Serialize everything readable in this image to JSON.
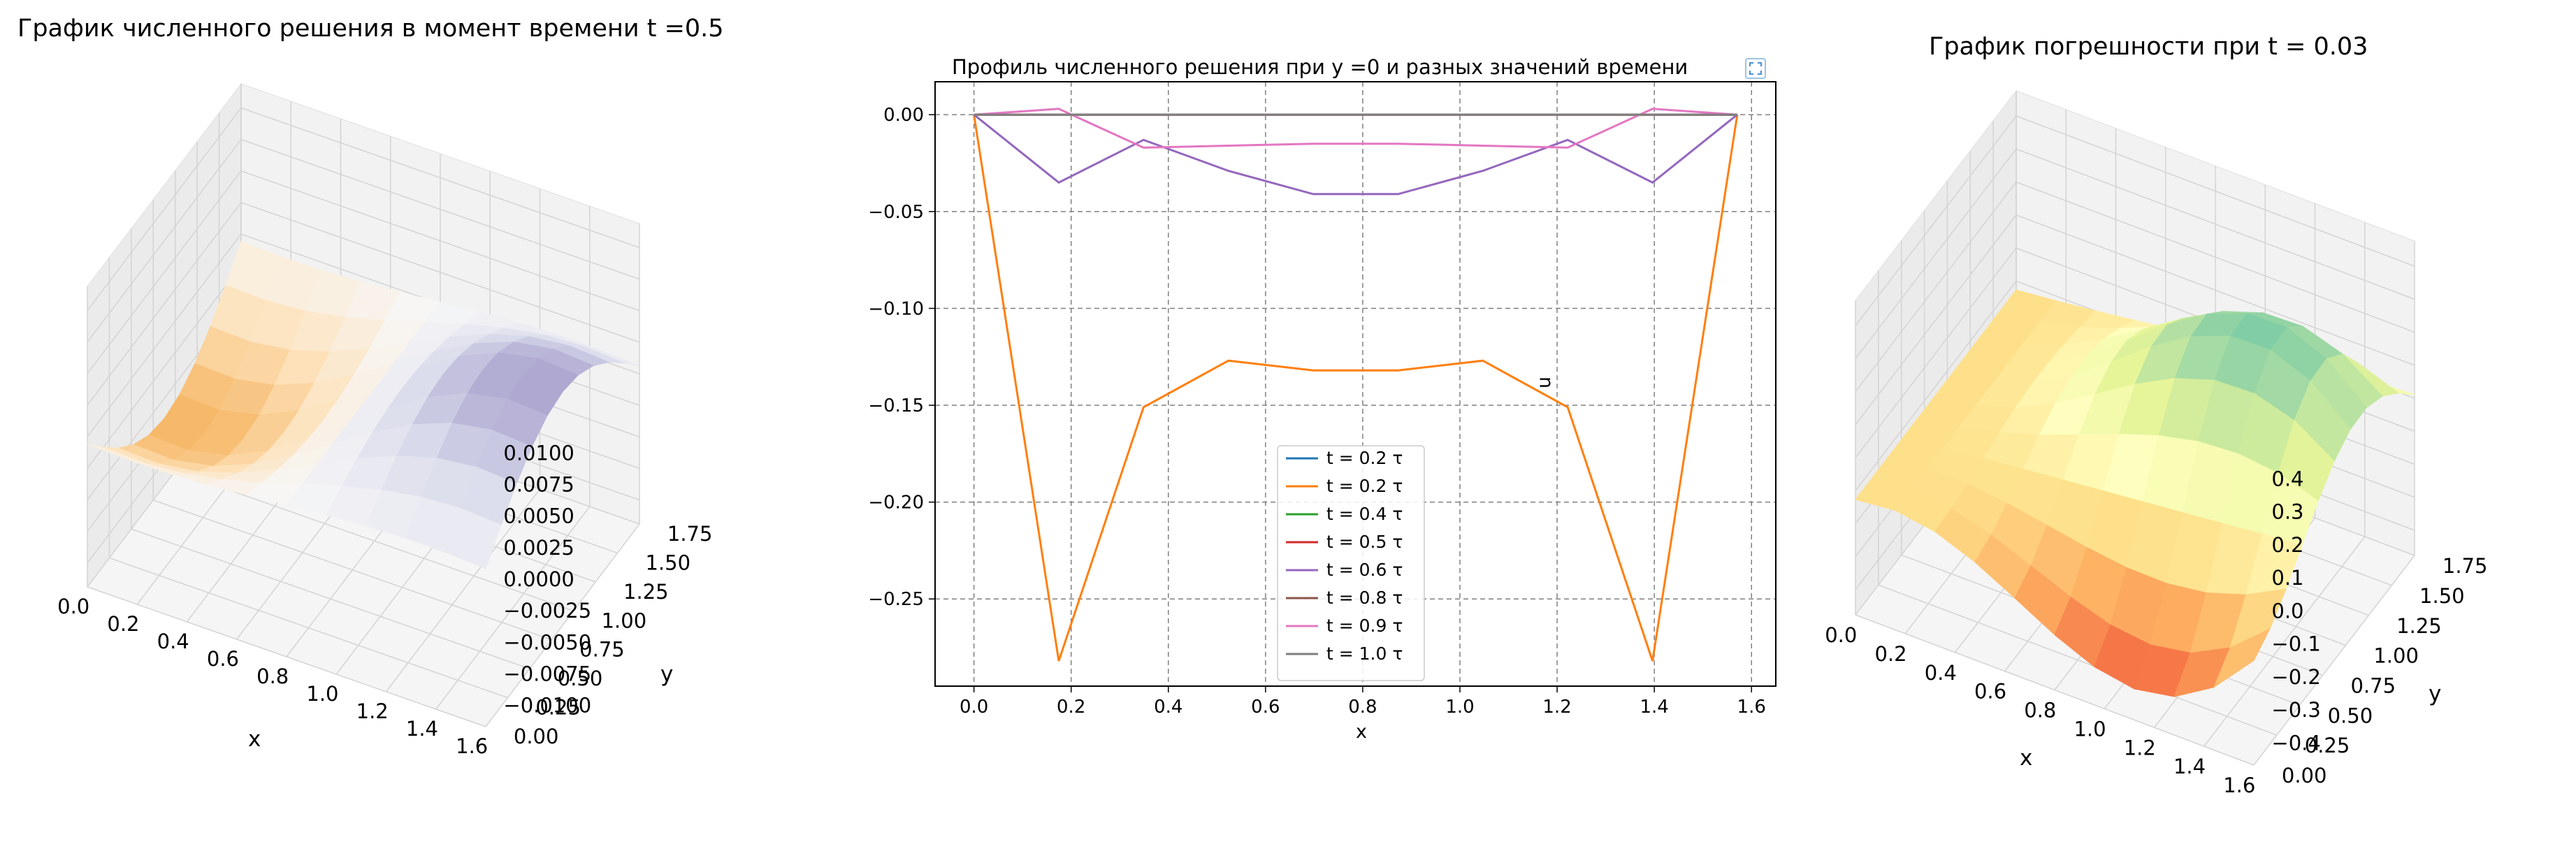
{
  "chart_data": [
    {
      "type": "surface3d",
      "title": "График численного решения в момент времени t =0.5",
      "xlabel": "x",
      "ylabel": "y",
      "xticks": [
        "0.0",
        "0.2",
        "0.4",
        "0.6",
        "0.8",
        "1.0",
        "1.2",
        "1.4",
        "1.6"
      ],
      "yticks": [
        "0.00",
        "0.25",
        "0.50",
        "0.75",
        "1.00",
        "1.25",
        "1.50",
        "1.75"
      ],
      "zticks": [
        "0.0100",
        "0.0075",
        "0.0050",
        "0.0025",
        "0.0000",
        "−0.0025",
        "−0.0050",
        "−0.0075",
        "−0.0100"
      ],
      "zlim": [
        -0.01,
        0.01
      ],
      "colormap": "PuOr",
      "colormap_stops": [
        "#b35806",
        "#f1a340",
        "#fee0b6",
        "#f7f7f7",
        "#d8daeb",
        "#998ec3",
        "#542788"
      ]
    },
    {
      "type": "line",
      "title": "Профиль численного решения при y =0 и разных значений времени",
      "xlabel": "x",
      "ylabel": "u",
      "xlim": [
        -0.08,
        1.65
      ],
      "ylim": [
        -0.295,
        0.017
      ],
      "xticks": [
        "0.0",
        "0.2",
        "0.4",
        "0.6",
        "0.8",
        "1.0",
        "1.2",
        "1.4",
        "1.6"
      ],
      "yticks": [
        "0.00",
        "−0.05",
        "−0.10",
        "−0.15",
        "−0.20",
        "−0.25"
      ],
      "grid": true,
      "legend_position": "lower center",
      "x": [
        0.0,
        0.1745,
        0.349,
        0.5236,
        0.6981,
        0.8727,
        1.0472,
        1.2217,
        1.3963,
        1.5708
      ],
      "series": [
        {
          "name": "t = 0.2 τ",
          "color": "#1f77b4",
          "values": [
            0,
            0,
            0,
            0,
            0,
            0,
            0,
            0,
            0,
            0
          ]
        },
        {
          "name": "t = 0.2 τ",
          "color": "#ff7f0e",
          "values": [
            0,
            -0.282,
            -0.151,
            -0.127,
            -0.132,
            -0.132,
            -0.127,
            -0.151,
            -0.282,
            0
          ]
        },
        {
          "name": "t = 0.4 τ",
          "color": "#2ca02c",
          "values": [
            0,
            0,
            0,
            0,
            0,
            0,
            0,
            0,
            0,
            0
          ]
        },
        {
          "name": "t = 0.5 τ",
          "color": "#d62728",
          "values": [
            0,
            0,
            0,
            0,
            0,
            0,
            0,
            0,
            0,
            0
          ]
        },
        {
          "name": "t = 0.6 τ",
          "color": "#9467bd",
          "values": [
            0,
            -0.035,
            -0.013,
            -0.029,
            -0.041,
            -0.041,
            -0.029,
            -0.013,
            -0.035,
            0
          ]
        },
        {
          "name": "t = 0.8 τ",
          "color": "#8c564b",
          "values": [
            0,
            0,
            0,
            0,
            0,
            0,
            0,
            0,
            0,
            0
          ]
        },
        {
          "name": "t = 0.9 τ",
          "color": "#e377c2",
          "values": [
            0,
            0.003,
            -0.017,
            -0.016,
            -0.015,
            -0.015,
            -0.016,
            -0.017,
            0.003,
            0
          ]
        },
        {
          "name": "t = 1.0 τ",
          "color": "#7f7f7f",
          "values": [
            0,
            0,
            0,
            0,
            0,
            0,
            0,
            0,
            0,
            0
          ]
        }
      ]
    },
    {
      "type": "surface3d",
      "title": "График погрешности при t = 0.03",
      "xlabel": "x",
      "ylabel": "y",
      "xticks": [
        "0.0",
        "0.2",
        "0.4",
        "0.6",
        "0.8",
        "1.0",
        "1.2",
        "1.4",
        "1.6"
      ],
      "yticks": [
        "0.00",
        "0.25",
        "0.50",
        "0.75",
        "1.00",
        "1.25",
        "1.50",
        "1.75"
      ],
      "zticks": [
        "0.4",
        "0.3",
        "0.2",
        "0.1",
        "0.0",
        "−0.1",
        "−0.2",
        "−0.3",
        "−0.4"
      ],
      "zlim": [
        -0.4,
        0.4
      ],
      "colormap": "Spectral",
      "colormap_stops": [
        "#d53e4f",
        "#f46d43",
        "#fdae61",
        "#fee08b",
        "#ffffbf",
        "#e6f598",
        "#abdda4",
        "#66c2a5",
        "#3288bd"
      ]
    }
  ]
}
